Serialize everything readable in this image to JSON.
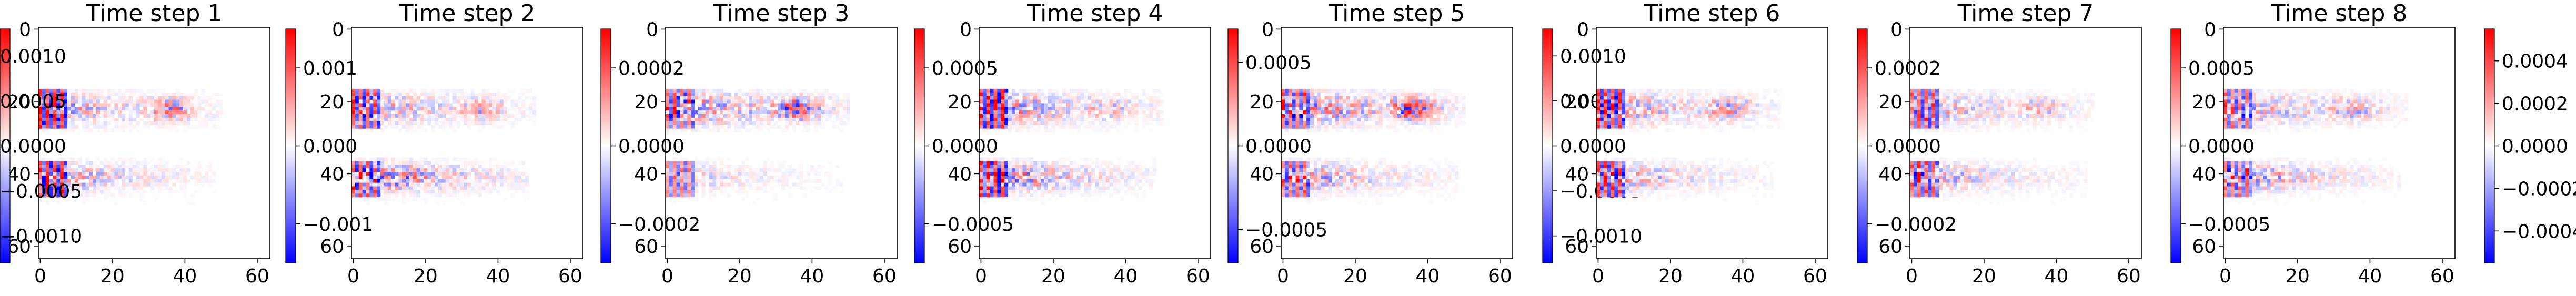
{
  "figure": {
    "background": "#ffffff"
  },
  "chart_data": [
    {
      "type": "heatmap",
      "title": "Time step 1",
      "grid_size": [
        64,
        64
      ],
      "xticks": [
        "0",
        "20",
        "40",
        "60"
      ],
      "yticks": [
        "0",
        "20",
        "40",
        "60"
      ],
      "colorbar": {
        "vmin": -0.0015,
        "vmax": 0.0015,
        "ticks": [
          "0.001",
          "0.000",
          "−0.001"
        ],
        "tick_values": [
          0.001,
          0,
          -0.001
        ],
        "colormap": "bwr"
      },
      "amplitude": 1.0,
      "features": {
        "upper_band": 0.55,
        "lower_band": 0.55,
        "left_columns": 1.0,
        "upper_tail": 0.7
      }
    },
    {
      "type": "heatmap",
      "title": "Time step 2",
      "grid_size": [
        64,
        64
      ],
      "xticks": [
        "0",
        "20",
        "40",
        "60"
      ],
      "yticks": [
        "0",
        "20",
        "40",
        "60"
      ],
      "colorbar": {
        "vmin": -0.0003,
        "vmax": 0.0003,
        "ticks": [
          "0.0002",
          "0.0000",
          "−0.0002"
        ],
        "tick_values": [
          0.0002,
          0,
          -0.0002
        ],
        "colormap": "bwr"
      },
      "amplitude": 1.0,
      "features": {
        "upper_band": 0.55,
        "lower_band": 0.9,
        "left_columns": 0.8,
        "upper_tail": 0.5
      }
    },
    {
      "type": "heatmap",
      "title": "Time step 3",
      "grid_size": [
        64,
        64
      ],
      "xticks": [
        "0",
        "20",
        "40",
        "60"
      ],
      "yticks": [
        "0",
        "20",
        "40",
        "60"
      ],
      "colorbar": {
        "vmin": -0.00075,
        "vmax": 0.00075,
        "ticks": [
          "0.0005",
          "0.0000",
          "−0.0005"
        ],
        "tick_values": [
          0.0005,
          0,
          -0.0005
        ],
        "colormap": "bwr"
      },
      "amplitude": 1.0,
      "features": {
        "upper_band": 0.75,
        "lower_band": 0.3,
        "left_columns": 0.6,
        "upper_tail": 0.9
      }
    },
    {
      "type": "heatmap",
      "title": "Time step 4",
      "grid_size": [
        64,
        64
      ],
      "xticks": [
        "0",
        "20",
        "40",
        "60"
      ],
      "yticks": [
        "0",
        "20",
        "40",
        "60"
      ],
      "colorbar": {
        "vmin": -0.0007,
        "vmax": 0.0007,
        "ticks": [
          "0.0005",
          "0.0000",
          "−0.0005"
        ],
        "tick_values": [
          0.0005,
          0,
          -0.0005
        ],
        "colormap": "bwr"
      },
      "amplitude": 1.0,
      "features": {
        "upper_band": 0.7,
        "lower_band": 0.8,
        "left_columns": 1.0,
        "upper_tail": 0.3
      }
    },
    {
      "type": "heatmap",
      "title": "Time step 5",
      "grid_size": [
        64,
        64
      ],
      "xticks": [
        "0",
        "20",
        "40",
        "60"
      ],
      "yticks": [
        "0",
        "20",
        "40",
        "60"
      ],
      "colorbar": {
        "vmin": -0.0013,
        "vmax": 0.0013,
        "ticks": [
          "0.0010",
          "0.0005",
          "0.0000",
          "−0.0005",
          "−0.0010"
        ],
        "tick_values": [
          0.001,
          0.0005,
          0,
          -0.0005,
          -0.001
        ],
        "colormap": "bwr"
      },
      "amplitude": 1.0,
      "features": {
        "upper_band": 0.8,
        "lower_band": 0.6,
        "left_columns": 0.7,
        "upper_tail": 1.0
      }
    },
    {
      "type": "heatmap",
      "title": "Time step 6",
      "grid_size": [
        64,
        64
      ],
      "xticks": [
        "0",
        "20",
        "40",
        "60"
      ],
      "yticks": [
        "0",
        "20",
        "40",
        "60"
      ],
      "colorbar": {
        "vmin": -0.0003,
        "vmax": 0.0003,
        "ticks": [
          "0.0002",
          "0.0000",
          "−0.0002"
        ],
        "tick_values": [
          0.0002,
          0,
          -0.0002
        ],
        "colormap": "bwr"
      },
      "amplitude": 1.0,
      "features": {
        "upper_band": 0.6,
        "lower_band": 0.55,
        "left_columns": 0.9,
        "upper_tail": 0.6
      }
    },
    {
      "type": "heatmap",
      "title": "Time step 7",
      "grid_size": [
        64,
        64
      ],
      "xticks": [
        "0",
        "20",
        "40",
        "60"
      ],
      "yticks": [
        "0",
        "20",
        "40",
        "60"
      ],
      "colorbar": {
        "vmin": -0.00075,
        "vmax": 0.00075,
        "ticks": [
          "0.0005",
          "0.0000",
          "−0.0005"
        ],
        "tick_values": [
          0.0005,
          0,
          -0.0005
        ],
        "colormap": "bwr"
      },
      "amplitude": 1.0,
      "features": {
        "upper_band": 0.5,
        "lower_band": 0.5,
        "left_columns": 0.8,
        "upper_tail": 0.4
      }
    },
    {
      "type": "heatmap",
      "title": "Time step 8",
      "grid_size": [
        64,
        64
      ],
      "xticks": [
        "0",
        "20",
        "40",
        "60"
      ],
      "yticks": [
        "0",
        "20",
        "40",
        "60"
      ],
      "colorbar": {
        "vmin": -0.00055,
        "vmax": 0.00055,
        "ticks": [
          "0.0004",
          "0.0002",
          "0.0000",
          "−0.0002",
          "−0.0004"
        ],
        "tick_values": [
          0.0004,
          0.0002,
          0,
          -0.0002,
          -0.0004
        ],
        "colormap": "bwr"
      },
      "amplitude": 1.0,
      "features": {
        "upper_band": 0.55,
        "lower_band": 0.6,
        "left_columns": 0.7,
        "upper_tail": 0.5
      }
    },
    {
      "type": "heatmap",
      "title": "",
      "grid_size": [
        0,
        0
      ],
      "xticks": [],
      "yticks": [],
      "colorbar": {
        "vmin": -0.0013,
        "vmax": 0.0013,
        "ticks": [
          "0.0010",
          "0.0005",
          "0.0000",
          "−0.0005",
          "−0.0010"
        ],
        "tick_values": [
          0.001,
          0.0005,
          0,
          -0.0005,
          -0.001
        ],
        "colormap": "bwr"
      },
      "amplitude": 0,
      "features": {}
    }
  ]
}
